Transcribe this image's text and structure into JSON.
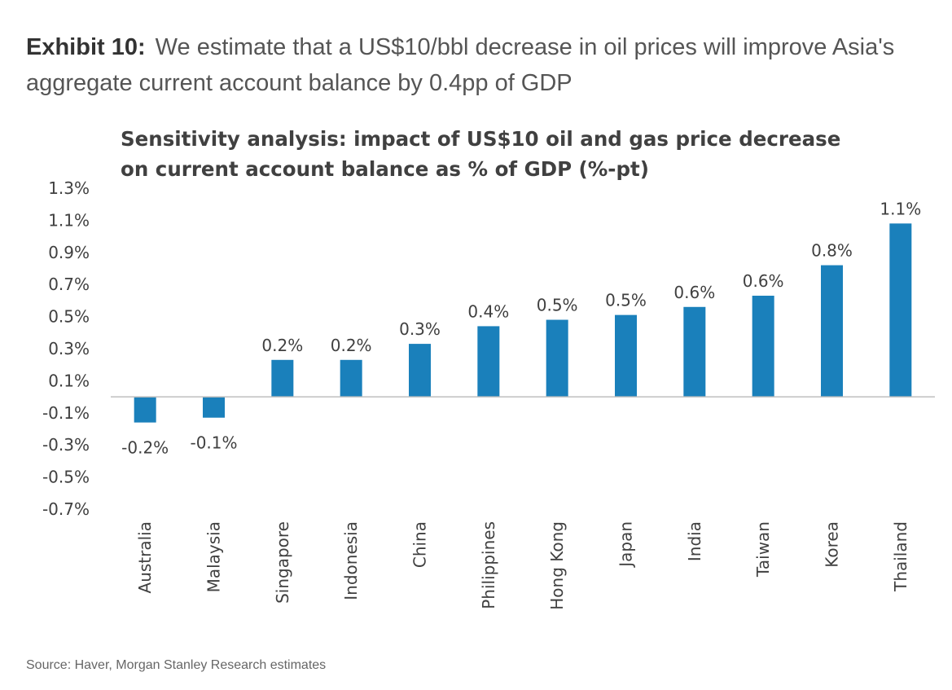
{
  "header": {
    "exhibit_label": "Exhibit 10:",
    "exhibit_text": "We estimate that a US$10/bbl decrease in oil prices will improve Asia's aggregate current account balance by 0.4pp of GDP"
  },
  "footer": {
    "source": "Source: Haver, Morgan Stanley Research estimates"
  },
  "chart_data": {
    "type": "bar",
    "title": "Sensitivity analysis: impact of US$10 oil and gas price decrease on current account balance as % of GDP (%-pt)",
    "xlabel": "",
    "ylabel": "",
    "categories": [
      "Australia",
      "Malaysia",
      "Singapore",
      "Indonesia",
      "China",
      "Philippines",
      "Hong Kong",
      "Japan",
      "India",
      "Taiwan",
      "Korea",
      "Thailand"
    ],
    "values": [
      -0.16,
      -0.13,
      0.23,
      0.23,
      0.33,
      0.44,
      0.48,
      0.51,
      0.56,
      0.63,
      0.82,
      1.08
    ],
    "data_labels": [
      "-0.2%",
      "-0.1%",
      "0.2%",
      "0.2%",
      "0.3%",
      "0.4%",
      "0.5%",
      "0.5%",
      "0.6%",
      "0.6%",
      "0.8%",
      "1.1%"
    ],
    "yticks": [
      1.3,
      1.1,
      0.9,
      0.7,
      0.5,
      0.3,
      0.1,
      -0.1,
      -0.3,
      -0.5,
      -0.7
    ],
    "ytick_labels": [
      "1.3%",
      "1.1%",
      "0.9%",
      "0.7%",
      "0.5%",
      "0.3%",
      "0.1%",
      "-0.1%",
      "-0.3%",
      "-0.5%",
      "-0.7%"
    ],
    "ylim": [
      -0.7,
      1.3
    ],
    "bar_color": "#1a80bb",
    "axis_color": "#bfbfbf",
    "grid": false,
    "legend": "none"
  }
}
